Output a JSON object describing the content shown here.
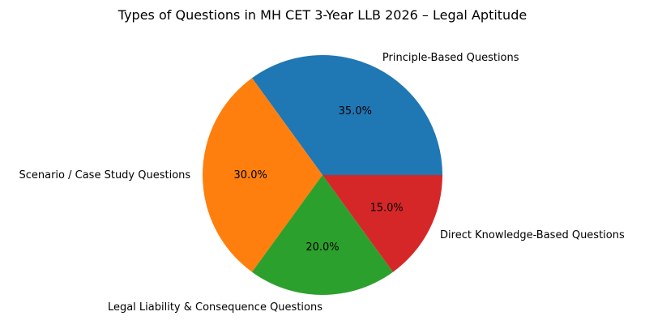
{
  "chart_data": {
    "type": "pie",
    "title": "Types of Questions in MH CET 3-Year LLB 2026 – Legal Aptitude",
    "labels": [
      "Principle-Based Questions",
      "Scenario / Case Study Questions",
      "Legal Liability & Consequence Questions",
      "Direct Knowledge-Based Questions"
    ],
    "values": [
      35,
      30,
      20,
      15
    ],
    "percent_labels": [
      "35.0%",
      "30.0%",
      "20.0%",
      "15.0%"
    ],
    "colors": [
      "#1f77b4",
      "#ff7f0e",
      "#2ca02c",
      "#d62728"
    ],
    "start_angle_deg": 0,
    "direction": "counterclockwise",
    "legend": "none"
  }
}
